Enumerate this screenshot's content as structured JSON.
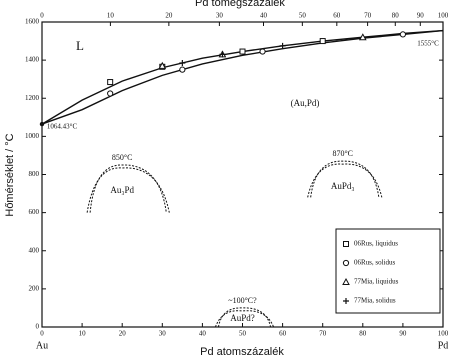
{
  "chart_data": {
    "type": "phase",
    "title": "Pd tömegszázalék",
    "xlabel": "Pd atomszázalék",
    "ylabel": "Hőmérséklet / °C",
    "left_element": "Au",
    "right_element": "Pd",
    "xlim": [
      0,
      100
    ],
    "xticks": [
      0,
      10,
      20,
      30,
      40,
      50,
      60,
      70,
      80,
      90,
      100
    ],
    "x2lim": [
      0,
      100
    ],
    "x2ticks": [
      0,
      10,
      20,
      30,
      40,
      50,
      60,
      70,
      80,
      90,
      100
    ],
    "ylim": [
      0,
      1600
    ],
    "yticks": [
      0,
      200,
      400,
      600,
      800,
      1000,
      1200,
      1400,
      1600
    ],
    "curves": [
      {
        "x": [
          0,
          10,
          20,
          30,
          40,
          50,
          60,
          70,
          80,
          90,
          100
        ],
        "values": [
          1064.43,
          1190,
          1290,
          1360,
          1410,
          1445,
          1475,
          1500,
          1520,
          1540,
          1555
        ]
      },
      {
        "x": [
          0,
          10,
          20,
          30,
          40,
          50,
          60,
          70,
          80,
          90,
          100
        ],
        "values": [
          1064.43,
          1140,
          1240,
          1320,
          1380,
          1425,
          1460,
          1490,
          1515,
          1535,
          1555
        ]
      }
    ],
    "series": [
      {
        "name": "06Rus, liquidus",
        "marker": "square",
        "x": [
          17,
          30,
          50,
          70
        ],
        "values": [
          1285,
          1365,
          1445,
          1500
        ]
      },
      {
        "name": "06Rus, solidus",
        "marker": "circle",
        "x": [
          17,
          35,
          55,
          90
        ],
        "values": [
          1225,
          1350,
          1445,
          1535
        ]
      },
      {
        "name": "77Mia, liquidus",
        "marker": "triangle",
        "x": [
          30,
          45,
          80
        ],
        "values": [
          1370,
          1430,
          1520
        ]
      },
      {
        "name": "77Mia, solidus",
        "marker": "plus",
        "x": [
          35,
          45,
          60
        ],
        "values": [
          1385,
          1430,
          1475
        ]
      }
    ],
    "annotations": [
      "L",
      "(Au,Pd)",
      "1064.43°C",
      "1555°C"
    ],
    "ordered": [
      {
        "label": "Au₃Pd",
        "temp_label": "850°C",
        "x": 20,
        "peak": 850,
        "range": [
          12,
          31
        ],
        "base": 600
      },
      {
        "label": "AuPd₃",
        "temp_label": "870°C",
        "x": 75,
        "peak": 870,
        "range": [
          67,
          84
        ],
        "base": 680
      },
      {
        "label": "AuPd?",
        "temp_label": "~100°C?",
        "x": 50,
        "peak": 100,
        "range": [
          44,
          57
        ],
        "base": 0
      }
    ]
  }
}
